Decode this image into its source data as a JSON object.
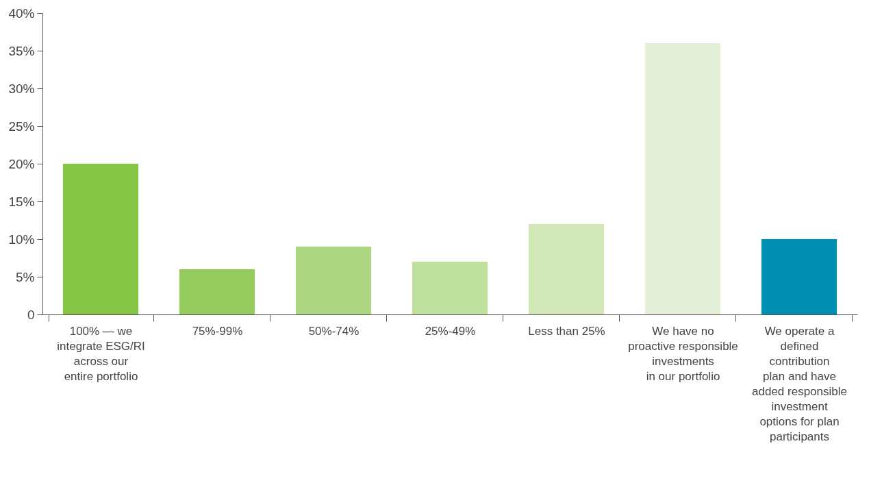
{
  "chart_data": {
    "type": "bar",
    "categories": [
      "100% — we\nintegrate ESG/RI\nacross our\nentire portfolio",
      "75%-99%",
      "50%-74%",
      "25%-49%",
      "Less than 25%",
      "We have no\nproactive responsible\ninvestments\nin our portfolio",
      "We operate a\ndefined\ncontribution\nplan and have\nadded responsible\ninvestment\noptions for plan\nparticipants"
    ],
    "values": [
      20,
      6,
      9,
      7,
      12,
      36,
      10
    ],
    "colors": [
      "#86c446",
      "#96cb60",
      "#acd581",
      "#bfe09e",
      "#d1e7b8",
      "#e3f0d7",
      "#008fb3"
    ],
    "ylim": [
      0,
      40
    ],
    "yticks": [
      0,
      {
        "value": 5,
        "label": "5%"
      },
      {
        "value": 10,
        "label": "10%"
      },
      {
        "value": 15,
        "label": "15%"
      },
      {
        "value": 20,
        "label": "20%"
      },
      {
        "value": 25,
        "label": "25%"
      },
      {
        "value": 30,
        "label": "30%"
      },
      {
        "value": 35,
        "label": "35%"
      },
      {
        "value": 40,
        "label": "40%"
      }
    ],
    "grid": false
  }
}
